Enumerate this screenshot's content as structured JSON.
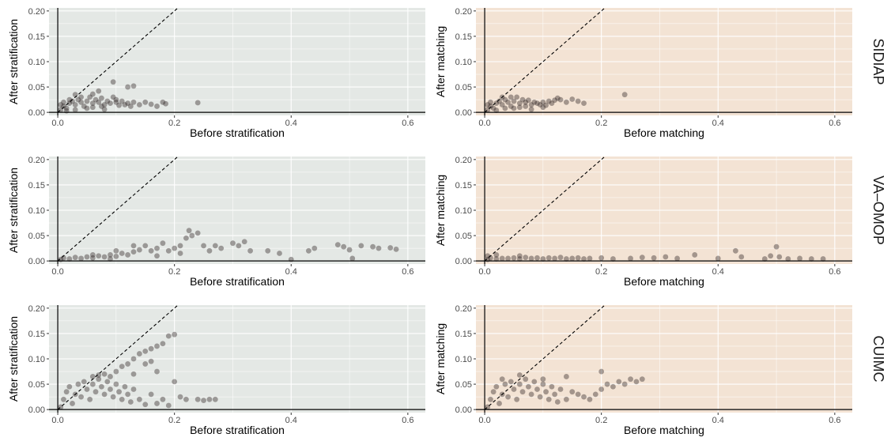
{
  "colors": {
    "stratification_panel_bg": "#e4e8e5",
    "matching_panel_bg": "#f3e3d4",
    "grid_line": "#ffffff",
    "point_color": "#2a2020",
    "axis_line": "#000000",
    "diagonal_line": "#000000"
  },
  "rows": [
    {
      "strip_label": "SIDIAP"
    },
    {
      "strip_label": "VA–OMOP"
    },
    {
      "strip_label": "CUIMC"
    }
  ],
  "columns": [
    {
      "xlabel": "Before stratification",
      "ylabel": "After stratification",
      "bg": "stratification"
    },
    {
      "xlabel": "Before matching",
      "ylabel": "After matching",
      "bg": "matching"
    }
  ],
  "chart_data": {
    "type": "scatter",
    "layout": "facet grid, 3 rows x 2 columns",
    "xlim": [
      -0.015,
      0.63
    ],
    "ylim": [
      -0.006,
      0.206
    ],
    "x_ticks": [
      0.0,
      0.2,
      0.4,
      0.6
    ],
    "x_tick_labels": [
      "0.0",
      "0.2",
      "0.4",
      "0.6"
    ],
    "y_ticks": [
      0.0,
      0.05,
      0.1,
      0.15,
      0.2
    ],
    "y_tick_labels": [
      "0.00",
      "0.05",
      "0.10",
      "0.15",
      "0.20"
    ],
    "reference_lines": [
      "x = 0",
      "y = 0",
      "y = x (dashed)"
    ],
    "grid": true,
    "point_opacity": 0.4,
    "panels": [
      {
        "row": "SIDIAP",
        "column": "stratification",
        "points": [
          [
            0.005,
            0.005
          ],
          [
            0.01,
            0.012
          ],
          [
            0.015,
            0.008
          ],
          [
            0.02,
            0.018
          ],
          [
            0.025,
            0.022
          ],
          [
            0.03,
            0.015
          ],
          [
            0.035,
            0.025
          ],
          [
            0.04,
            0.02
          ],
          [
            0.045,
            0.012
          ],
          [
            0.05,
            0.022
          ],
          [
            0.055,
            0.03
          ],
          [
            0.06,
            0.018
          ],
          [
            0.065,
            0.025
          ],
          [
            0.07,
            0.02
          ],
          [
            0.075,
            0.028
          ],
          [
            0.08,
            0.015
          ],
          [
            0.085,
            0.022
          ],
          [
            0.09,
            0.018
          ],
          [
            0.095,
            0.03
          ],
          [
            0.1,
            0.02
          ],
          [
            0.105,
            0.014
          ],
          [
            0.11,
            0.022
          ],
          [
            0.115,
            0.015
          ],
          [
            0.12,
            0.018
          ],
          [
            0.125,
            0.012
          ],
          [
            0.13,
            0.02
          ],
          [
            0.14,
            0.015
          ],
          [
            0.15,
            0.02
          ],
          [
            0.16,
            0.016
          ],
          [
            0.17,
            0.012
          ],
          [
            0.18,
            0.02
          ],
          [
            0.185,
            0.017
          ],
          [
            0.24,
            0.019
          ],
          [
            0.095,
            0.06
          ],
          [
            0.13,
            0.052
          ],
          [
            0.12,
            0.05
          ],
          [
            0.07,
            0.042
          ],
          [
            0.06,
            0.036
          ],
          [
            0.03,
            0.035
          ],
          [
            0.02,
            0.025
          ],
          [
            0.01,
            0.02
          ],
          [
            0.015,
            0.003
          ],
          [
            0.05,
            0.008
          ],
          [
            0.08,
            0.006
          ],
          [
            0.005,
            0.015
          ],
          [
            0.04,
            0.03
          ],
          [
            0.1,
            0.025
          ],
          [
            0.06,
            0.01
          ],
          [
            0.03,
            0.005
          ],
          [
            0.075,
            0.012
          ]
        ]
      },
      {
        "row": "SIDIAP",
        "column": "matching",
        "points": [
          [
            0.005,
            0.005
          ],
          [
            0.01,
            0.012
          ],
          [
            0.015,
            0.008
          ],
          [
            0.02,
            0.018
          ],
          [
            0.025,
            0.022
          ],
          [
            0.03,
            0.015
          ],
          [
            0.035,
            0.025
          ],
          [
            0.04,
            0.02
          ],
          [
            0.045,
            0.012
          ],
          [
            0.05,
            0.022
          ],
          [
            0.055,
            0.03
          ],
          [
            0.06,
            0.018
          ],
          [
            0.065,
            0.025
          ],
          [
            0.07,
            0.02
          ],
          [
            0.075,
            0.024
          ],
          [
            0.08,
            0.015
          ],
          [
            0.085,
            0.02
          ],
          [
            0.09,
            0.018
          ],
          [
            0.095,
            0.015
          ],
          [
            0.1,
            0.02
          ],
          [
            0.105,
            0.014
          ],
          [
            0.11,
            0.022
          ],
          [
            0.115,
            0.018
          ],
          [
            0.12,
            0.024
          ],
          [
            0.125,
            0.028
          ],
          [
            0.13,
            0.025
          ],
          [
            0.14,
            0.02
          ],
          [
            0.15,
            0.026
          ],
          [
            0.16,
            0.022
          ],
          [
            0.17,
            0.018
          ],
          [
            0.24,
            0.035
          ],
          [
            0.03,
            0.03
          ],
          [
            0.045,
            0.03
          ],
          [
            0.01,
            0.02
          ],
          [
            0.02,
            0.004
          ],
          [
            0.05,
            0.008
          ],
          [
            0.08,
            0.006
          ],
          [
            0.06,
            0.01
          ],
          [
            0.035,
            0.008
          ],
          [
            0.005,
            0.015
          ],
          [
            0.07,
            0.012
          ],
          [
            0.1,
            0.01
          ]
        ]
      },
      {
        "row": "VA–OMOP",
        "column": "stratification",
        "points": [
          [
            0.005,
            0.003
          ],
          [
            0.01,
            0.006
          ],
          [
            0.02,
            0.004
          ],
          [
            0.03,
            0.007
          ],
          [
            0.04,
            0.005
          ],
          [
            0.05,
            0.008
          ],
          [
            0.06,
            0.006
          ],
          [
            0.07,
            0.01
          ],
          [
            0.08,
            0.008
          ],
          [
            0.09,
            0.012
          ],
          [
            0.1,
            0.009
          ],
          [
            0.11,
            0.015
          ],
          [
            0.12,
            0.012
          ],
          [
            0.13,
            0.018
          ],
          [
            0.14,
            0.022
          ],
          [
            0.15,
            0.03
          ],
          [
            0.16,
            0.02
          ],
          [
            0.17,
            0.025
          ],
          [
            0.18,
            0.035
          ],
          [
            0.19,
            0.02
          ],
          [
            0.2,
            0.025
          ],
          [
            0.21,
            0.03
          ],
          [
            0.22,
            0.045
          ],
          [
            0.225,
            0.06
          ],
          [
            0.23,
            0.05
          ],
          [
            0.24,
            0.055
          ],
          [
            0.25,
            0.03
          ],
          [
            0.26,
            0.02
          ],
          [
            0.27,
            0.03
          ],
          [
            0.28,
            0.025
          ],
          [
            0.3,
            0.035
          ],
          [
            0.31,
            0.03
          ],
          [
            0.32,
            0.038
          ],
          [
            0.33,
            0.02
          ],
          [
            0.36,
            0.02
          ],
          [
            0.38,
            0.015
          ],
          [
            0.4,
            0.003
          ],
          [
            0.43,
            0.02
          ],
          [
            0.44,
            0.025
          ],
          [
            0.48,
            0.032
          ],
          [
            0.49,
            0.028
          ],
          [
            0.5,
            0.022
          ],
          [
            0.505,
            0.005
          ],
          [
            0.52,
            0.03
          ],
          [
            0.54,
            0.028
          ],
          [
            0.55,
            0.025
          ],
          [
            0.57,
            0.026
          ],
          [
            0.58,
            0.023
          ],
          [
            0.1,
            0.02
          ],
          [
            0.13,
            0.03
          ],
          [
            0.17,
            0.01
          ],
          [
            0.21,
            0.015
          ],
          [
            0.06,
            0.012
          ],
          [
            0.09,
            0.004
          ]
        ]
      },
      {
        "row": "VA–OMOP",
        "column": "matching",
        "points": [
          [
            0.005,
            0.003
          ],
          [
            0.01,
            0.006
          ],
          [
            0.02,
            0.004
          ],
          [
            0.03,
            0.005
          ],
          [
            0.04,
            0.005
          ],
          [
            0.05,
            0.006
          ],
          [
            0.06,
            0.004
          ],
          [
            0.07,
            0.007
          ],
          [
            0.08,
            0.005
          ],
          [
            0.09,
            0.006
          ],
          [
            0.1,
            0.004
          ],
          [
            0.11,
            0.006
          ],
          [
            0.12,
            0.005
          ],
          [
            0.13,
            0.007
          ],
          [
            0.14,
            0.004
          ],
          [
            0.15,
            0.005
          ],
          [
            0.16,
            0.006
          ],
          [
            0.17,
            0.004
          ],
          [
            0.18,
            0.005
          ],
          [
            0.2,
            0.006
          ],
          [
            0.22,
            0.004
          ],
          [
            0.25,
            0.005
          ],
          [
            0.27,
            0.007
          ],
          [
            0.29,
            0.006
          ],
          [
            0.31,
            0.008
          ],
          [
            0.33,
            0.005
          ],
          [
            0.36,
            0.012
          ],
          [
            0.4,
            0.005
          ],
          [
            0.43,
            0.02
          ],
          [
            0.44,
            0.008
          ],
          [
            0.49,
            0.01
          ],
          [
            0.5,
            0.028
          ],
          [
            0.505,
            0.008
          ],
          [
            0.52,
            0.004
          ],
          [
            0.54,
            0.005
          ],
          [
            0.56,
            0.004
          ],
          [
            0.58,
            0.004
          ],
          [
            0.48,
            0.004
          ],
          [
            0.005,
            0.01
          ],
          [
            0.02,
            0.012
          ],
          [
            0.06,
            0.01
          ]
        ]
      },
      {
        "row": "CUIMC",
        "column": "stratification",
        "points": [
          [
            0.005,
            0.005
          ],
          [
            0.01,
            0.02
          ],
          [
            0.015,
            0.035
          ],
          [
            0.02,
            0.045
          ],
          [
            0.025,
            0.012
          ],
          [
            0.03,
            0.03
          ],
          [
            0.035,
            0.05
          ],
          [
            0.04,
            0.025
          ],
          [
            0.045,
            0.055
          ],
          [
            0.05,
            0.04
          ],
          [
            0.055,
            0.02
          ],
          [
            0.06,
            0.05
          ],
          [
            0.065,
            0.035
          ],
          [
            0.07,
            0.06
          ],
          [
            0.075,
            0.045
          ],
          [
            0.08,
            0.03
          ],
          [
            0.085,
            0.055
          ],
          [
            0.09,
            0.04
          ],
          [
            0.095,
            0.025
          ],
          [
            0.1,
            0.05
          ],
          [
            0.105,
            0.035
          ],
          [
            0.11,
            0.02
          ],
          [
            0.115,
            0.045
          ],
          [
            0.12,
            0.03
          ],
          [
            0.125,
            0.015
          ],
          [
            0.13,
            0.04
          ],
          [
            0.14,
            0.02
          ],
          [
            0.15,
            0.01
          ],
          [
            0.16,
            0.03
          ],
          [
            0.17,
            0.012
          ],
          [
            0.18,
            0.02
          ],
          [
            0.19,
            0.008
          ],
          [
            0.12,
            0.09
          ],
          [
            0.13,
            0.1
          ],
          [
            0.14,
            0.11
          ],
          [
            0.15,
            0.115
          ],
          [
            0.16,
            0.12
          ],
          [
            0.17,
            0.125
          ],
          [
            0.18,
            0.13
          ],
          [
            0.19,
            0.145
          ],
          [
            0.2,
            0.148
          ],
          [
            0.1,
            0.075
          ],
          [
            0.11,
            0.085
          ],
          [
            0.13,
            0.07
          ],
          [
            0.15,
            0.09
          ],
          [
            0.16,
            0.095
          ],
          [
            0.17,
            0.075
          ],
          [
            0.2,
            0.055
          ],
          [
            0.21,
            0.025
          ],
          [
            0.24,
            0.02
          ],
          [
            0.25,
            0.018
          ],
          [
            0.26,
            0.02
          ],
          [
            0.27,
            0.02
          ],
          [
            0.22,
            0.02
          ],
          [
            0.09,
            0.065
          ],
          [
            0.08,
            0.07
          ],
          [
            0.07,
            0.068
          ],
          [
            0.06,
            0.065
          ]
        ]
      },
      {
        "row": "CUIMC",
        "column": "matching",
        "points": [
          [
            0.005,
            0.005
          ],
          [
            0.01,
            0.02
          ],
          [
            0.015,
            0.035
          ],
          [
            0.02,
            0.045
          ],
          [
            0.025,
            0.012
          ],
          [
            0.03,
            0.03
          ],
          [
            0.035,
            0.05
          ],
          [
            0.04,
            0.025
          ],
          [
            0.045,
            0.055
          ],
          [
            0.05,
            0.04
          ],
          [
            0.055,
            0.02
          ],
          [
            0.06,
            0.05
          ],
          [
            0.065,
            0.035
          ],
          [
            0.07,
            0.06
          ],
          [
            0.075,
            0.045
          ],
          [
            0.08,
            0.03
          ],
          [
            0.085,
            0.055
          ],
          [
            0.09,
            0.04
          ],
          [
            0.095,
            0.025
          ],
          [
            0.1,
            0.05
          ],
          [
            0.105,
            0.035
          ],
          [
            0.11,
            0.02
          ],
          [
            0.115,
            0.045
          ],
          [
            0.12,
            0.03
          ],
          [
            0.125,
            0.015
          ],
          [
            0.13,
            0.04
          ],
          [
            0.14,
            0.02
          ],
          [
            0.15,
            0.035
          ],
          [
            0.16,
            0.03
          ],
          [
            0.17,
            0.025
          ],
          [
            0.18,
            0.02
          ],
          [
            0.19,
            0.03
          ],
          [
            0.2,
            0.04
          ],
          [
            0.21,
            0.05
          ],
          [
            0.22,
            0.045
          ],
          [
            0.23,
            0.055
          ],
          [
            0.24,
            0.05
          ],
          [
            0.25,
            0.06
          ],
          [
            0.26,
            0.055
          ],
          [
            0.27,
            0.06
          ],
          [
            0.2,
            0.075
          ],
          [
            0.14,
            0.065
          ],
          [
            0.1,
            0.06
          ],
          [
            0.06,
            0.068
          ],
          [
            0.03,
            0.06
          ]
        ]
      }
    ]
  }
}
